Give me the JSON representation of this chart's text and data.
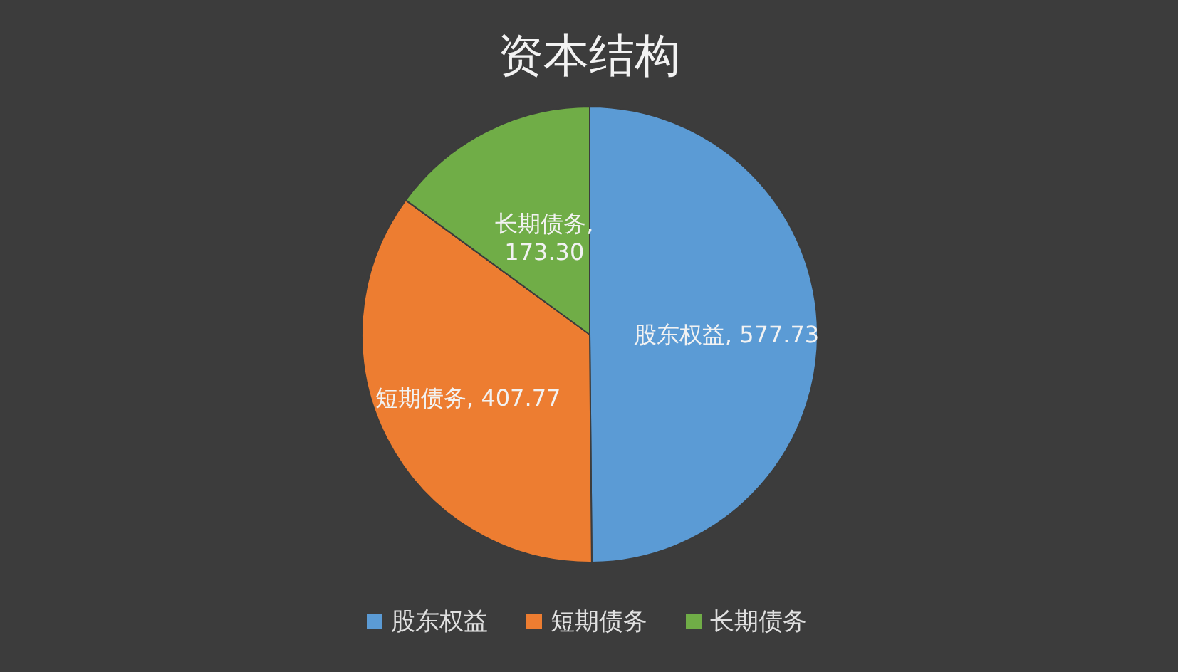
{
  "chart_data": {
    "type": "pie",
    "title": "资本结构",
    "categories": [
      "股东权益",
      "短期债务",
      "长期债务"
    ],
    "values": [
      577.73,
      407.77,
      173.3
    ],
    "colors": [
      "#5b9bd5",
      "#ed7d31",
      "#70ad47"
    ],
    "value_labels": [
      "股东权益, 577.73",
      "短期债务, 407.77",
      "长期债务, 173.30"
    ],
    "legend": "bottom"
  }
}
